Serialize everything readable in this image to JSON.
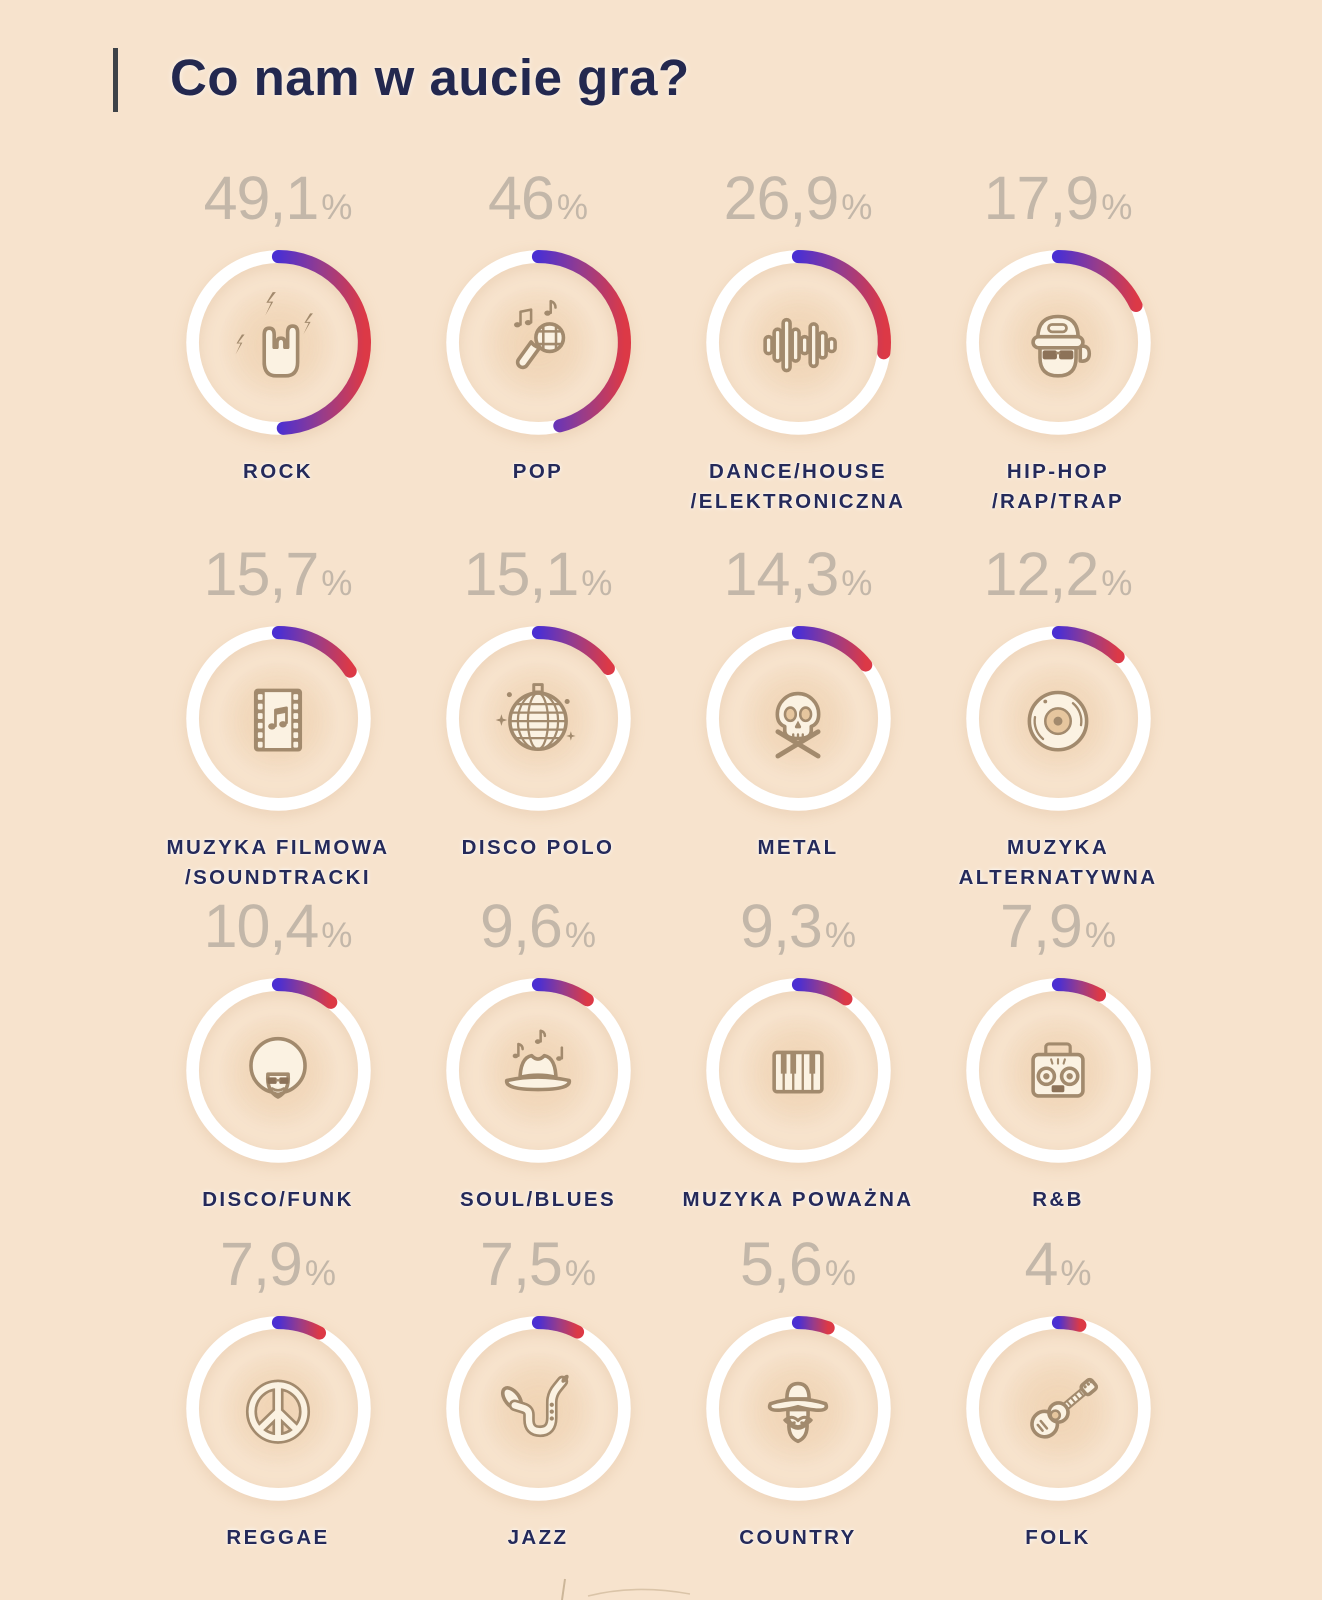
{
  "title": "Co nam w aucie gra?",
  "percent_sign": "%",
  "colors": {
    "background": "#F7E3CD",
    "title_text": "#23284F",
    "accent_bar": "#3E4248",
    "percent_text": "#C3B7A9",
    "label_text": "#252A5A",
    "ring": "#FFFFFF",
    "arc_gradient_start": "#4B2FD2",
    "arc_gradient_mid": "#963C8C",
    "arc_gradient_end": "#DC3946",
    "icon_stroke": "#A28A6D",
    "icon_fill": "#FBF2E2",
    "icon_tint_dark": "#8C7258",
    "icon_tint_light": "#E6C69E",
    "halo": "#EFCFA9"
  },
  "chart_data": {
    "type": "pie",
    "variant": "donut-gauge-grid",
    "title": "Co nam w aucie gra?",
    "unit": "%",
    "grid": "4 columns x 4 rows, row-major descending values",
    "legend_position": "label below each gauge, value above each gauge",
    "gauge_style": "white full ring with blue-to-red gradient arc starting at 12 o'clock, clockwise",
    "items": [
      {
        "label": "ROCK",
        "label_lines": [
          "ROCK"
        ],
        "value": 49.1,
        "display": "49,1",
        "icon": "rock-hand-icon"
      },
      {
        "label": "POP",
        "label_lines": [
          "POP"
        ],
        "value": 46,
        "display": "46",
        "icon": "microphone-icon"
      },
      {
        "label": "DANCE/HOUSE/ELEKTRONICZNA",
        "label_lines": [
          "DANCE/HOUSE",
          "/ELEKTRONICZNA"
        ],
        "value": 26.9,
        "display": "26,9",
        "icon": "equalizer-icon"
      },
      {
        "label": "HIP-HOP/RAP/TRAP",
        "label_lines": [
          "HIP-HOP",
          "/RAP/TRAP"
        ],
        "value": 17.9,
        "display": "17,9",
        "icon": "rapper-icon"
      },
      {
        "label": "MUZYKA FILMOWA/SOUNDTRACKI",
        "label_lines": [
          "MUZYKA FILMOWA",
          "/SOUNDTRACKI"
        ],
        "value": 15.7,
        "display": "15,7",
        "icon": "filmstrip-icon"
      },
      {
        "label": "DISCO POLO",
        "label_lines": [
          "DISCO POLO"
        ],
        "value": 15.1,
        "display": "15,1",
        "icon": "discoball-icon"
      },
      {
        "label": "METAL",
        "label_lines": [
          "METAL"
        ],
        "value": 14.3,
        "display": "14,3",
        "icon": "skull-icon"
      },
      {
        "label": "MUZYKA ALTERNATYWNA",
        "label_lines": [
          "MUZYKA",
          "ALTERNATYWNA"
        ],
        "value": 12.2,
        "display": "12,2",
        "icon": "vinyl-icon"
      },
      {
        "label": "DISCO/FUNK",
        "label_lines": [
          "DISCO/FUNK"
        ],
        "value": 10.4,
        "display": "10,4",
        "icon": "afro-icon"
      },
      {
        "label": "SOUL/BLUES",
        "label_lines": [
          "SOUL/BLUES"
        ],
        "value": 9.6,
        "display": "9,6",
        "icon": "fedora-icon"
      },
      {
        "label": "MUZYKA POWAŻNA",
        "label_lines": [
          "MUZYKA POWAŻNA"
        ],
        "value": 9.3,
        "display": "9,3",
        "icon": "piano-icon"
      },
      {
        "label": "R&B",
        "label_lines": [
          "R&B"
        ],
        "value": 7.9,
        "display": "7,9",
        "icon": "boombox-icon"
      },
      {
        "label": "REGGAE",
        "label_lines": [
          "REGGAE"
        ],
        "value": 7.9,
        "display": "7,9",
        "icon": "peace-icon"
      },
      {
        "label": "JAZZ",
        "label_lines": [
          "JAZZ"
        ],
        "value": 7.5,
        "display": "7,5",
        "icon": "saxophone-icon"
      },
      {
        "label": "COUNTRY",
        "label_lines": [
          "COUNTRY"
        ],
        "value": 5.6,
        "display": "5,6",
        "icon": "cowboy-icon"
      },
      {
        "label": "FOLK",
        "label_lines": [
          "FOLK"
        ],
        "value": 4,
        "display": "4",
        "icon": "guitar-icon"
      }
    ]
  }
}
